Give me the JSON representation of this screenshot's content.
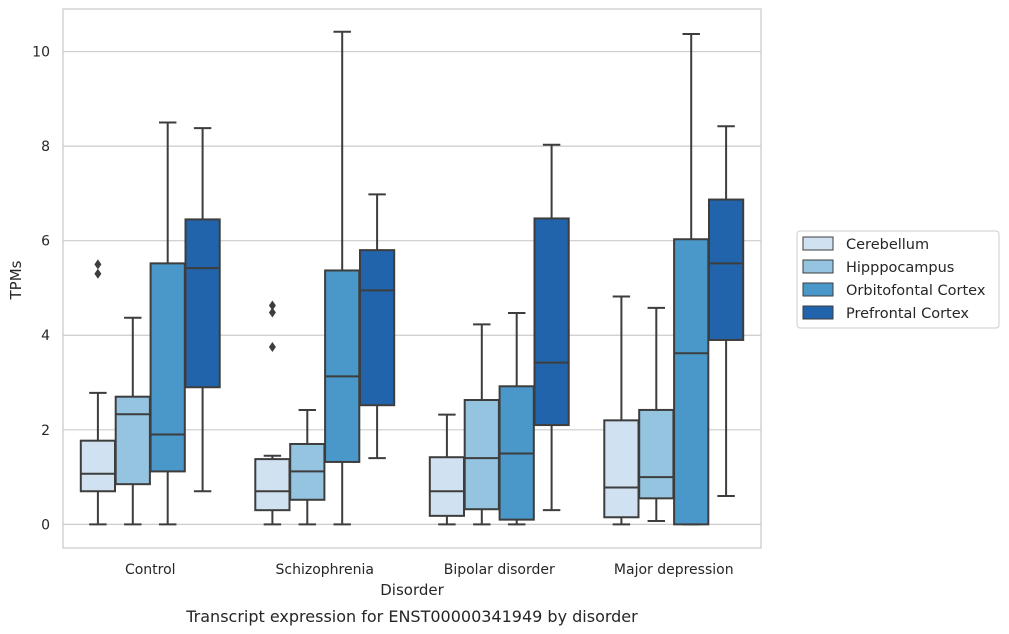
{
  "chart_data": {
    "type": "box",
    "xlabel": "Disorder",
    "ylabel": "TPMs",
    "caption": "Transcript expression for ENST00000341949 by disorder",
    "ylim": [
      -0.5,
      10.9
    ],
    "yticks": [
      0,
      2,
      4,
      6,
      8,
      10
    ],
    "grid": "horizontal",
    "legend_position": "right, outside plot",
    "categories": [
      "Control",
      "Schizophrenia",
      "Bipolar disorder",
      "Major depression"
    ],
    "series": [
      {
        "name": "Cerebellum",
        "color": "#d0e1f2",
        "boxes": [
          {
            "whislo": 0,
            "q1": 0.7,
            "med": 1.07,
            "q3": 1.77,
            "whishi": 2.78,
            "fliers": [
              5.3,
              5.5
            ]
          },
          {
            "whislo": 0,
            "q1": 0.3,
            "med": 0.7,
            "q3": 1.38,
            "whishi": 1.45,
            "fliers": [
              3.75,
              4.48,
              4.63
            ]
          },
          {
            "whislo": 0,
            "q1": 0.18,
            "med": 0.7,
            "q3": 1.42,
            "whishi": 2.32,
            "fliers": []
          },
          {
            "whislo": 0,
            "q1": 0.15,
            "med": 0.78,
            "q3": 2.2,
            "whishi": 4.82,
            "fliers": []
          }
        ]
      },
      {
        "name": "Hipppocampus",
        "color": "#94c4df",
        "boxes": [
          {
            "whislo": 0,
            "q1": 0.85,
            "med": 2.33,
            "q3": 2.7,
            "whishi": 4.37,
            "fliers": []
          },
          {
            "whislo": 0,
            "q1": 0.52,
            "med": 1.12,
            "q3": 1.7,
            "whishi": 2.42,
            "fliers": []
          },
          {
            "whislo": 0,
            "q1": 0.32,
            "med": 1.4,
            "q3": 2.63,
            "whishi": 4.23,
            "fliers": []
          },
          {
            "whislo": 0.07,
            "q1": 0.55,
            "med": 1.0,
            "q3": 2.42,
            "whishi": 4.58,
            "fliers": []
          }
        ]
      },
      {
        "name": "Orbitofontal Cortex",
        "color": "#4a98c9",
        "boxes": [
          {
            "whislo": 0,
            "q1": 1.12,
            "med": 1.9,
            "q3": 5.52,
            "whishi": 8.5,
            "fliers": []
          },
          {
            "whislo": 0,
            "q1": 1.32,
            "med": 3.13,
            "q3": 5.37,
            "whishi": 10.42,
            "fliers": []
          },
          {
            "whislo": 0,
            "q1": 0.1,
            "med": 1.5,
            "q3": 2.92,
            "whishi": 4.47,
            "fliers": []
          },
          {
            "whislo": 0,
            "q1": 0.0,
            "med": 3.62,
            "q3": 6.03,
            "whishi": 10.37,
            "fliers": []
          }
        ]
      },
      {
        "name": "Prefrontal Cortex",
        "color": "#2164ab",
        "boxes": [
          {
            "whislo": 0.7,
            "q1": 2.9,
            "med": 5.42,
            "q3": 6.45,
            "whishi": 8.38,
            "fliers": []
          },
          {
            "whislo": 1.4,
            "q1": 2.52,
            "med": 4.95,
            "q3": 5.8,
            "whishi": 6.98,
            "fliers": []
          },
          {
            "whislo": 0.3,
            "q1": 2.1,
            "med": 3.42,
            "q3": 6.47,
            "whishi": 8.03,
            "fliers": []
          },
          {
            "whislo": 0.6,
            "q1": 3.9,
            "med": 5.52,
            "q3": 6.87,
            "whishi": 8.42,
            "fliers": []
          }
        ]
      }
    ]
  }
}
